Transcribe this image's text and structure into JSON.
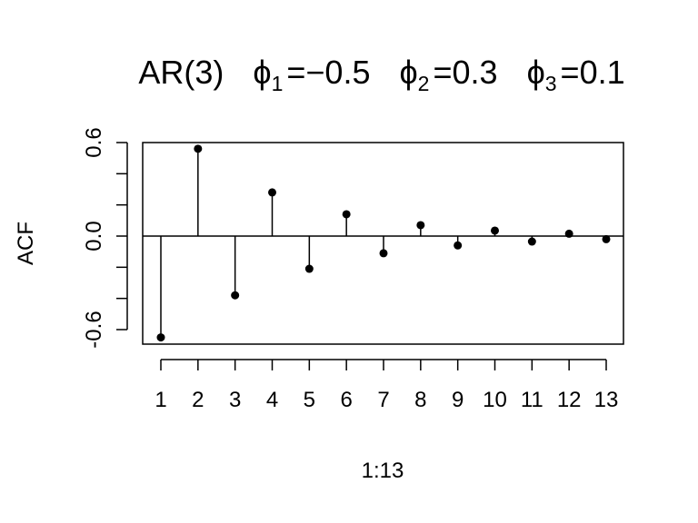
{
  "chart_data": {
    "type": "stem",
    "title": {
      "model": "AR(3)",
      "phi_symbol": "ϕ",
      "params": [
        {
          "subscript": "1",
          "value": "−0.5"
        },
        {
          "subscript": "2",
          "value": "0.3"
        },
        {
          "subscript": "3",
          "value": "0.1"
        }
      ]
    },
    "xlabel": "1:13",
    "ylabel": "ACF",
    "x": [
      1,
      2,
      3,
      4,
      5,
      6,
      7,
      8,
      9,
      10,
      11,
      12,
      13
    ],
    "x_tick_labels": [
      "1",
      "2",
      "3",
      "4",
      "5",
      "6",
      "7",
      "8",
      "9",
      "10",
      "11",
      "12",
      "13"
    ],
    "y_ticks": [
      -0.6,
      -0.4,
      -0.2,
      0.0,
      0.2,
      0.4,
      0.6
    ],
    "y_tick_labels": [
      "-0.6",
      "",
      "",
      "0.0",
      "",
      "",
      "0.6"
    ],
    "ylim": [
      -0.67,
      0.6
    ],
    "xlim": [
      0.5,
      13.5
    ],
    "values": [
      -0.65,
      0.56,
      -0.38,
      0.28,
      -0.21,
      0.14,
      -0.11,
      0.07,
      -0.06,
      0.035,
      -0.035,
      0.015,
      -0.02
    ],
    "zero_line": true
  }
}
